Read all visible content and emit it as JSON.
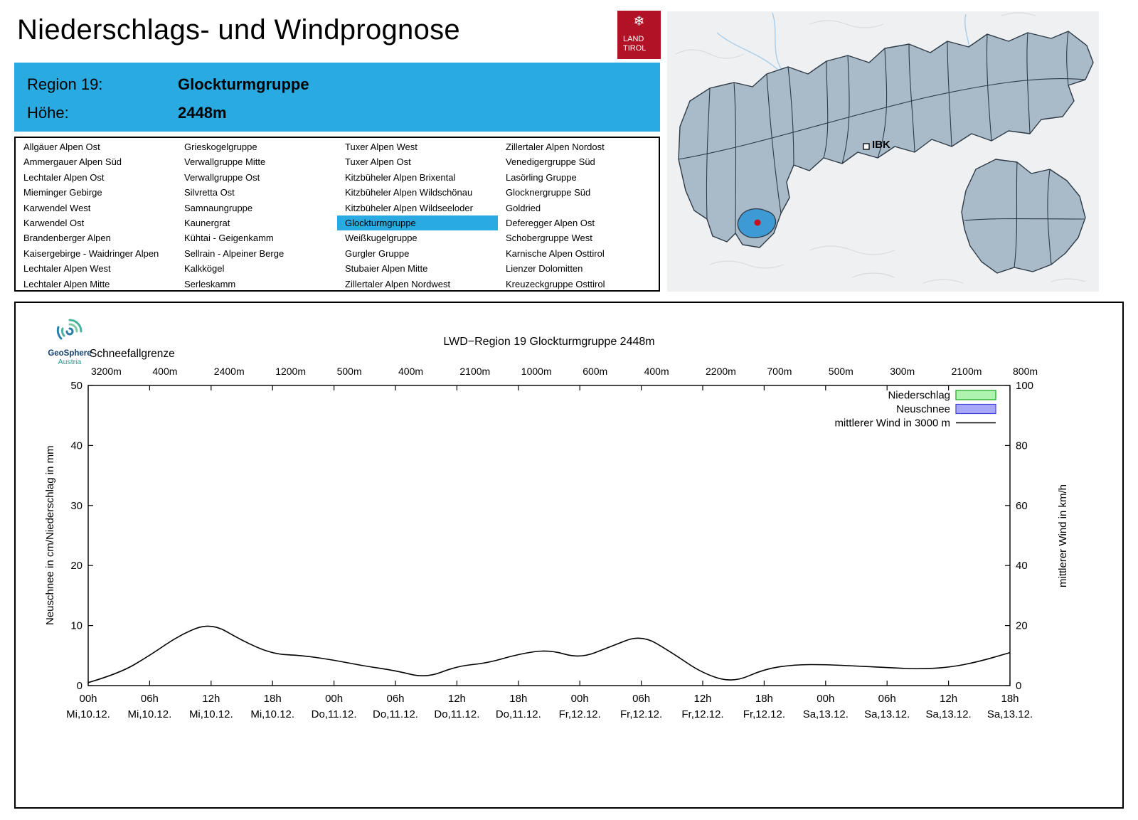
{
  "header": {
    "title": "Niederschlags- und Windprognose",
    "logo_line1": "LAND",
    "logo_line2": "TIROL"
  },
  "region_info": {
    "region_label": "Region 19:",
    "region_value": "Glockturmgruppe",
    "altitude_label": "Höhe:",
    "altitude_value": "2448m"
  },
  "region_list": {
    "selected": "Glockturmgruppe",
    "columns": [
      [
        "Allgäuer Alpen Ost",
        "Ammergauer Alpen Süd",
        "Lechtaler Alpen Ost",
        "Mieminger Gebirge",
        "Karwendel West",
        "Karwendel Ost",
        "Brandenberger Alpen",
        "Kaisergebirge - Waidringer Alpen",
        "Lechtaler Alpen West",
        "Lechtaler Alpen Mitte"
      ],
      [
        "Grieskogelgruppe",
        "Verwallgruppe Mitte",
        "Verwallgruppe Ost",
        "Silvretta Ost",
        "Samnaungruppe",
        "Kaunergrat",
        "Kühtai - Geigenkamm",
        "Sellrain - Alpeiner Berge",
        "Kalkkögel",
        "Serleskamm"
      ],
      [
        "Tuxer Alpen West",
        "Tuxer Alpen Ost",
        "Kitzbüheler Alpen Brixental",
        "Kitzbüheler Alpen Wildschönau",
        "Kitzbüheler Alpen Wildseeloder",
        "Glockturmgruppe",
        "Weißkugelgruppe",
        "Gurgler Gruppe",
        "Stubaier Alpen Mitte",
        "Zillertaler Alpen Nordwest"
      ],
      [
        "Zillertaler Alpen Nordost",
        "Venedigergruppe Süd",
        "Lasörling Gruppe",
        "Glocknergruppe Süd",
        "Goldried",
        "Deferegger Alpen Ost",
        "Schobergruppe West",
        "Karnische Alpen Osttirol",
        "Lienzer Dolomitten",
        "Kreuzeckgruppe Osttirol"
      ]
    ]
  },
  "map": {
    "marker_label": "IBK",
    "region_fill": "#a9bbc9",
    "highlight_fill": "#3e9ad4",
    "marker_dot_color": "#c1121f"
  },
  "geosphere": {
    "name": "GeoSphere",
    "sub": "Austria"
  },
  "chart_data": {
    "type": "line",
    "title": "LWD−Region 19 Glockturmgruppe 2448m",
    "snowline_label": "Schneefallgrenze",
    "snowline_values": [
      "3200m",
      "400m",
      "2400m",
      "1200m",
      "500m",
      "400m",
      "2100m",
      "1000m",
      "600m",
      "400m",
      "2200m",
      "700m",
      "500m",
      "300m",
      "2100m",
      "800m"
    ],
    "ylabel_left": "Neuschnee in cm/Niederschlag in mm",
    "ylabel_right": "mittlerer Wind in km/h",
    "ylim_left": [
      0,
      50
    ],
    "ylim_right": [
      0,
      100
    ],
    "yticks_left": [
      0,
      10,
      20,
      30,
      40,
      50
    ],
    "yticks_right": [
      0,
      20,
      40,
      60,
      80,
      100
    ],
    "grid": false,
    "legend_position": "top-right-inside",
    "x_ticks_time": [
      "00h",
      "06h",
      "12h",
      "18h",
      "00h",
      "06h",
      "12h",
      "18h",
      "00h",
      "06h",
      "12h",
      "18h",
      "00h",
      "06h",
      "12h",
      "18h"
    ],
    "x_ticks_date": [
      "Mi,10.12.",
      "Mi,10.12.",
      "Mi,10.12.",
      "Mi,10.12.",
      "Do,11.12.",
      "Do,11.12.",
      "Do,11.12.",
      "Do,11.12.",
      "Fr,12.12.",
      "Fr,12.12.",
      "Fr,12.12.",
      "Fr,12.12.",
      "Sa,13.12.",
      "Sa,13.12.",
      "Sa,13.12.",
      "Sa,13.12."
    ],
    "legend": [
      {
        "label": "Niederschlag",
        "swatch": "box",
        "fill": "#aef3ae",
        "stroke": "#12a812"
      },
      {
        "label": "Neuschnee",
        "swatch": "box",
        "fill": "#a8a8f8",
        "stroke": "#4040d8"
      },
      {
        "label": "mittlerer Wind in 3000 m",
        "swatch": "line",
        "stroke": "#000000"
      }
    ],
    "series": [
      {
        "name": "mittlerer Wind in 3000 m",
        "axis": "right",
        "unit": "km/h",
        "start_hour": 0,
        "step_hours": 3,
        "values": [
          1,
          4,
          10,
          17,
          21,
          15,
          10.5,
          10,
          8.5,
          6.5,
          5,
          2.5,
          6.5,
          7.5,
          10.5,
          12,
          9,
          13,
          17,
          11,
          4,
          1,
          5.5,
          7,
          7,
          6.5,
          6,
          5.5,
          6,
          8,
          11
        ]
      },
      {
        "name": "Niederschlag",
        "axis": "left",
        "unit": "mm",
        "start_hour": 0,
        "step_hours": 3,
        "values": [
          0,
          0,
          0,
          0,
          0,
          0,
          0,
          0,
          0,
          0,
          0,
          0,
          0,
          0,
          0,
          0,
          0,
          0,
          0,
          0,
          0,
          0,
          0,
          0,
          0,
          0,
          0,
          0,
          0,
          0,
          0
        ]
      },
      {
        "name": "Neuschnee",
        "axis": "left",
        "unit": "cm",
        "start_hour": 0,
        "step_hours": 3,
        "values": [
          0,
          0,
          0,
          0,
          0,
          0,
          0,
          0,
          0,
          0,
          0,
          0,
          0,
          0,
          0,
          0,
          0,
          0,
          0,
          0,
          0,
          0,
          0,
          0,
          0,
          0,
          0,
          0,
          0,
          0,
          0
        ]
      }
    ]
  }
}
